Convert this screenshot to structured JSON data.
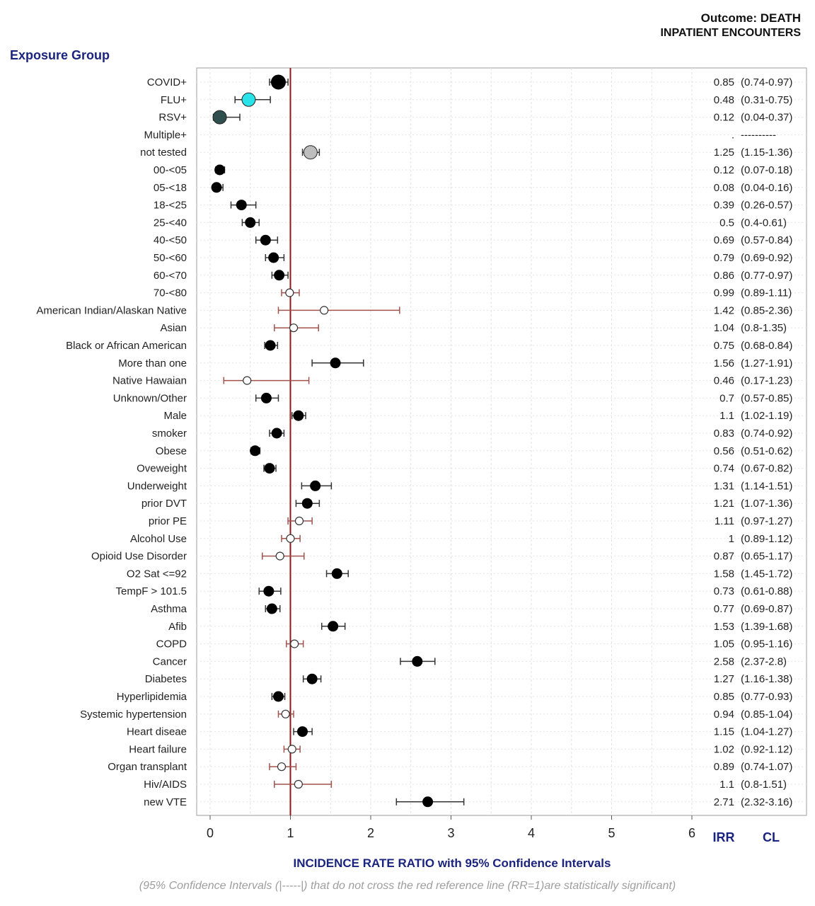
{
  "header": {
    "outcome": "Outcome: DEATH",
    "subtitle": "INPATIENT ENCOUNTERS",
    "group_title": "Exposure Group"
  },
  "chart_data": {
    "type": "forest",
    "xlabel": "INCIDENCE RATE RATIO with 95% Confidence Intervals",
    "note": "(95% Confidence Intervals (|-----|) that do not cross the red reference line (RR=1)are statistically significant)",
    "xlim": [
      0,
      6
    ],
    "xticks": [
      0,
      1,
      2,
      3,
      4,
      5,
      6
    ],
    "reference_line": 1,
    "grid": true,
    "column_headers": {
      "irr": "IRR",
      "cl": "CL"
    },
    "colors": {
      "reference": "#8b1a1a",
      "significant": "#000000",
      "nonsignificant": "#ffffff",
      "covid": "#000000",
      "flu": "#29e3e8",
      "rsv": "#2f4f4f",
      "not_tested": "#bdbdbd",
      "ci_dark": "#333333",
      "ci_red": "#a0524d"
    },
    "rows": [
      {
        "label": "COVID+",
        "irr": 0.85,
        "lo": 0.74,
        "hi": 0.97,
        "irr_text": "0.85",
        "cl_text": "(0.74-0.97)",
        "style": "covid",
        "size": "large"
      },
      {
        "label": "FLU+",
        "irr": 0.48,
        "lo": 0.31,
        "hi": 0.75,
        "irr_text": "0.48",
        "cl_text": "(0.31-0.75)",
        "style": "flu",
        "size": "large"
      },
      {
        "label": "RSV+",
        "irr": 0.12,
        "lo": 0.04,
        "hi": 0.37,
        "irr_text": "0.12",
        "cl_text": "(0.04-0.37)",
        "style": "rsv",
        "size": "large"
      },
      {
        "label": "Multiple+",
        "irr": null,
        "lo": null,
        "hi": null,
        "irr_text": ".",
        "cl_text": "----------",
        "style": "none",
        "size": "none"
      },
      {
        "label": "not tested",
        "irr": 1.25,
        "lo": 1.15,
        "hi": 1.36,
        "irr_text": "1.25",
        "cl_text": "(1.15-1.36)",
        "style": "not_tested",
        "size": "large"
      },
      {
        "label": "00-<05",
        "irr": 0.12,
        "lo": 0.07,
        "hi": 0.18,
        "irr_text": "0.12",
        "cl_text": "(0.07-0.18)",
        "style": "sig"
      },
      {
        "label": "05-<18",
        "irr": 0.08,
        "lo": 0.04,
        "hi": 0.16,
        "irr_text": "0.08",
        "cl_text": "(0.04-0.16)",
        "style": "sig"
      },
      {
        "label": "18-<25",
        "irr": 0.39,
        "lo": 0.26,
        "hi": 0.57,
        "irr_text": "0.39",
        "cl_text": "(0.26-0.57)",
        "style": "sig"
      },
      {
        "label": "25-<40",
        "irr": 0.5,
        "lo": 0.4,
        "hi": 0.61,
        "irr_text": "0.5",
        "cl_text": "(0.4-0.61)",
        "style": "sig"
      },
      {
        "label": "40-<50",
        "irr": 0.69,
        "lo": 0.57,
        "hi": 0.84,
        "irr_text": "0.69",
        "cl_text": "(0.57-0.84)",
        "style": "sig"
      },
      {
        "label": "50-<60",
        "irr": 0.79,
        "lo": 0.69,
        "hi": 0.92,
        "irr_text": "0.79",
        "cl_text": "(0.69-0.92)",
        "style": "sig"
      },
      {
        "label": "60-<70",
        "irr": 0.86,
        "lo": 0.77,
        "hi": 0.97,
        "irr_text": "0.86",
        "cl_text": "(0.77-0.97)",
        "style": "sig"
      },
      {
        "label": "70-<80",
        "irr": 0.99,
        "lo": 0.89,
        "hi": 1.11,
        "irr_text": "0.99",
        "cl_text": "(0.89-1.11)",
        "style": "ns"
      },
      {
        "label": "American Indian/Alaskan Native",
        "irr": 1.42,
        "lo": 0.85,
        "hi": 2.36,
        "irr_text": "1.42",
        "cl_text": "(0.85-2.36)",
        "style": "ns"
      },
      {
        "label": "Asian",
        "irr": 1.04,
        "lo": 0.8,
        "hi": 1.35,
        "irr_text": "1.04",
        "cl_text": "(0.8-1.35)",
        "style": "ns"
      },
      {
        "label": "Black or African American",
        "irr": 0.75,
        "lo": 0.68,
        "hi": 0.84,
        "irr_text": "0.75",
        "cl_text": "(0.68-0.84)",
        "style": "sig"
      },
      {
        "label": "More than one",
        "irr": 1.56,
        "lo": 1.27,
        "hi": 1.91,
        "irr_text": "1.56",
        "cl_text": "(1.27-1.91)",
        "style": "sig"
      },
      {
        "label": "Native Hawaian",
        "irr": 0.46,
        "lo": 0.17,
        "hi": 1.23,
        "irr_text": "0.46",
        "cl_text": "(0.17-1.23)",
        "style": "ns"
      },
      {
        "label": "Unknown/Other",
        "irr": 0.7,
        "lo": 0.57,
        "hi": 0.85,
        "irr_text": "0.7",
        "cl_text": "(0.57-0.85)",
        "style": "sig"
      },
      {
        "label": "Male",
        "irr": 1.1,
        "lo": 1.02,
        "hi": 1.19,
        "irr_text": "1.1",
        "cl_text": "(1.02-1.19)",
        "style": "sig"
      },
      {
        "label": "smoker",
        "irr": 0.83,
        "lo": 0.74,
        "hi": 0.92,
        "irr_text": "0.83",
        "cl_text": "(0.74-0.92)",
        "style": "sig"
      },
      {
        "label": "Obese",
        "irr": 0.56,
        "lo": 0.51,
        "hi": 0.62,
        "irr_text": "0.56",
        "cl_text": "(0.51-0.62)",
        "style": "sig"
      },
      {
        "label": "Oveweight",
        "irr": 0.74,
        "lo": 0.67,
        "hi": 0.82,
        "irr_text": "0.74",
        "cl_text": "(0.67-0.82)",
        "style": "sig"
      },
      {
        "label": "Underweight",
        "irr": 1.31,
        "lo": 1.14,
        "hi": 1.51,
        "irr_text": "1.31",
        "cl_text": "(1.14-1.51)",
        "style": "sig"
      },
      {
        "label": "prior DVT",
        "irr": 1.21,
        "lo": 1.07,
        "hi": 1.36,
        "irr_text": "1.21",
        "cl_text": "(1.07-1.36)",
        "style": "sig"
      },
      {
        "label": "prior PE",
        "irr": 1.11,
        "lo": 0.97,
        "hi": 1.27,
        "irr_text": "1.11",
        "cl_text": "(0.97-1.27)",
        "style": "ns"
      },
      {
        "label": "Alcohol Use",
        "irr": 1,
        "lo": 0.89,
        "hi": 1.12,
        "irr_text": "1",
        "cl_text": "(0.89-1.12)",
        "style": "ns"
      },
      {
        "label": "Opioid Use Disorder",
        "irr": 0.87,
        "lo": 0.65,
        "hi": 1.17,
        "irr_text": "0.87",
        "cl_text": "(0.65-1.17)",
        "style": "ns"
      },
      {
        "label": "O2 Sat <=92",
        "irr": 1.58,
        "lo": 1.45,
        "hi": 1.72,
        "irr_text": "1.58",
        "cl_text": "(1.45-1.72)",
        "style": "sig"
      },
      {
        "label": "TempF > 101.5",
        "irr": 0.73,
        "lo": 0.61,
        "hi": 0.88,
        "irr_text": "0.73",
        "cl_text": "(0.61-0.88)",
        "style": "sig"
      },
      {
        "label": "Asthma",
        "irr": 0.77,
        "lo": 0.69,
        "hi": 0.87,
        "irr_text": "0.77",
        "cl_text": "(0.69-0.87)",
        "style": "sig"
      },
      {
        "label": "Afib",
        "irr": 1.53,
        "lo": 1.39,
        "hi": 1.68,
        "irr_text": "1.53",
        "cl_text": "(1.39-1.68)",
        "style": "sig"
      },
      {
        "label": "COPD",
        "irr": 1.05,
        "lo": 0.95,
        "hi": 1.16,
        "irr_text": "1.05",
        "cl_text": "(0.95-1.16)",
        "style": "ns"
      },
      {
        "label": "Cancer",
        "irr": 2.58,
        "lo": 2.37,
        "hi": 2.8,
        "irr_text": "2.58",
        "cl_text": "(2.37-2.8)",
        "style": "sig"
      },
      {
        "label": "Diabetes",
        "irr": 1.27,
        "lo": 1.16,
        "hi": 1.38,
        "irr_text": "1.27",
        "cl_text": "(1.16-1.38)",
        "style": "sig"
      },
      {
        "label": "Hyperlipidemia",
        "irr": 0.85,
        "lo": 0.77,
        "hi": 0.93,
        "irr_text": "0.85",
        "cl_text": "(0.77-0.93)",
        "style": "sig"
      },
      {
        "label": "Systemic hypertension",
        "irr": 0.94,
        "lo": 0.85,
        "hi": 1.04,
        "irr_text": "0.94",
        "cl_text": "(0.85-1.04)",
        "style": "ns"
      },
      {
        "label": "Heart diseae",
        "irr": 1.15,
        "lo": 1.04,
        "hi": 1.27,
        "irr_text": "1.15",
        "cl_text": "(1.04-1.27)",
        "style": "sig"
      },
      {
        "label": "Heart failure",
        "irr": 1.02,
        "lo": 0.92,
        "hi": 1.12,
        "irr_text": "1.02",
        "cl_text": "(0.92-1.12)",
        "style": "ns"
      },
      {
        "label": "Organ transplant",
        "irr": 0.89,
        "lo": 0.74,
        "hi": 1.07,
        "irr_text": "0.89",
        "cl_text": "(0.74-1.07)",
        "style": "ns"
      },
      {
        "label": "Hiv/AIDS",
        "irr": 1.1,
        "lo": 0.8,
        "hi": 1.51,
        "irr_text": "1.1",
        "cl_text": "(0.8-1.51)",
        "style": "ns"
      },
      {
        "label": "new VTE",
        "irr": 2.71,
        "lo": 2.32,
        "hi": 3.16,
        "irr_text": "2.71",
        "cl_text": "(2.32-3.16)",
        "style": "sig"
      }
    ]
  }
}
